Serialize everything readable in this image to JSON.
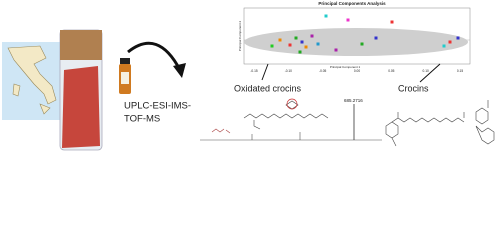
{
  "method_lines": [
    "UPLC-ESI-IMS-",
    "TOF-MS"
  ],
  "pca": {
    "title": "Principal Components Analysis",
    "x_label": "Principal Component 1",
    "y_label": "Principal Component 2",
    "x_ticks": [
      "-0.15",
      "-0.10",
      "-0.05",
      "0.00",
      "0.05",
      "0.10",
      "0.15"
    ]
  },
  "labels": {
    "oxidated": "Oxidated crocins",
    "crocins": "Crocins"
  },
  "spectrum": {
    "peak": "685.2716"
  }
}
